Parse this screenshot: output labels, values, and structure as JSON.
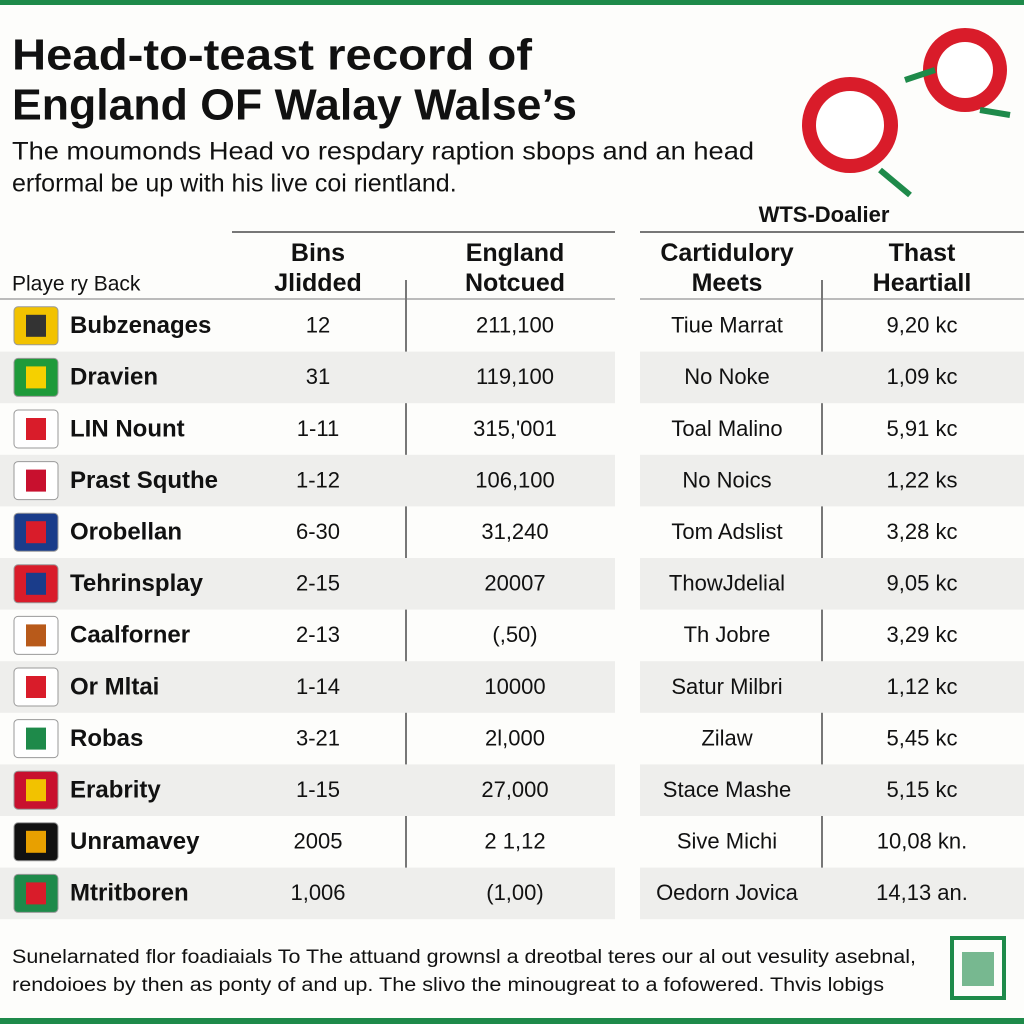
{
  "header": {
    "title": [
      "Head-to-teast record of",
      "England OF Walay Walse’s"
    ],
    "subtitle": [
      "The moumonds Head vo respdary raption sbops and an head",
      "erformal be up with his live coi rientland."
    ]
  },
  "table": {
    "group_label": "WTS-Doalier",
    "columns": [
      "Playe ry Back",
      "Bins Jlidded",
      "England Notcued",
      "Cartidulory Meets",
      "Thast Heartiall"
    ],
    "rows": [
      [
        "Bubzenages",
        "12",
        "211,100",
        "Tiue Marrat",
        "9,20 kc"
      ],
      [
        "Dravien",
        "31",
        "119,100",
        "No Noke",
        "1,09 kc"
      ],
      [
        "LIN Nount",
        "1-11",
        "315,'001",
        "Toal Malino",
        "5,91 kc"
      ],
      [
        "Prast Squthe",
        "1-12",
        "106,100",
        "No Noics",
        "1,22 ks"
      ],
      [
        "Orobellan",
        "6-30",
        "31,240",
        "Tom Adslist",
        "3,28 kc"
      ],
      [
        "Tehrinsplay",
        "2-15",
        "20007",
        "ThowJdelial",
        "9,05 kc"
      ],
      [
        "Caalforner",
        "2-13",
        "(,50)",
        "Th Jobre",
        "3,29 kc"
      ],
      [
        "Or Mltai",
        "1-14",
        "10000",
        "Satur Milbri",
        "1,12 kc"
      ],
      [
        "Robas",
        "3-21",
        "2l,000",
        "Zilaw",
        "5,45 kc"
      ],
      [
        "Erabrity",
        "1-15",
        "27,000",
        "Stace Mashe",
        "5,15 kc"
      ],
      [
        "Unramavey",
        "2005",
        "2 1,12",
        "Sive Michi",
        "10,08 kn."
      ],
      [
        "Mtritboren",
        "1,006",
        "(1,00)",
        "Oedorn Jovica",
        "14,13 an."
      ]
    ]
  },
  "footer": [
    "Sunelarnated flor foadiaials To The attuand grownsl a dreotbal teres our al out vesulity asebnal,",
    "rendoioes by then as ponty of and up. The slivo the minougreat to a fofowered. Thvis lobigs"
  ]
}
